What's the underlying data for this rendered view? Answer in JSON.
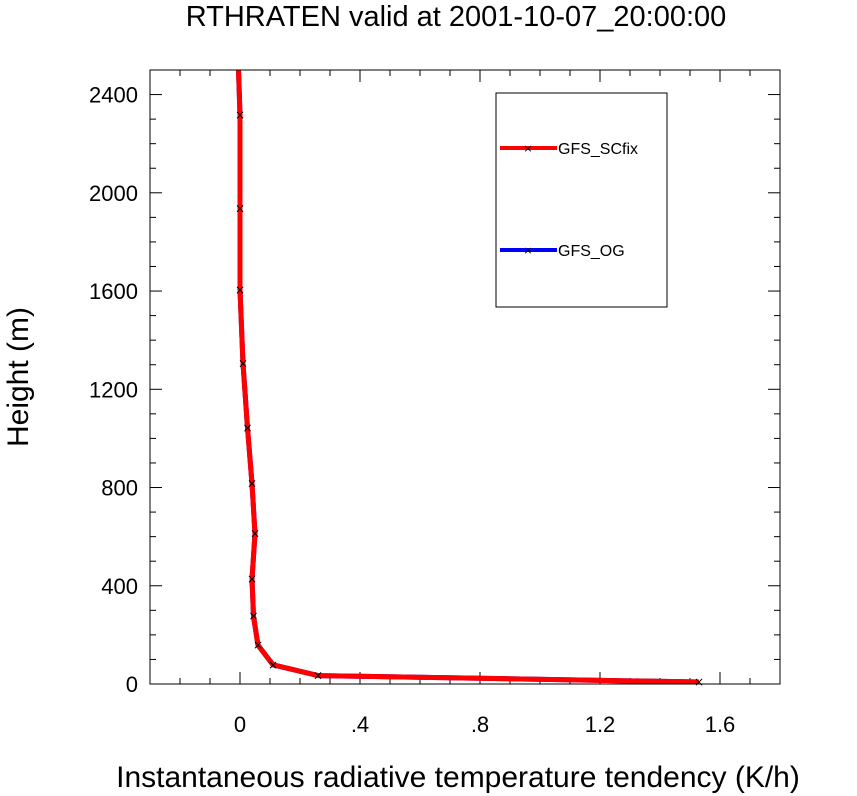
{
  "chart_data": {
    "type": "line",
    "title": "RTHRATEN valid at 2001-10-07_20:00:00",
    "xlabel": "Instantaneous radiative temperature tendency (K/h)",
    "ylabel": "Height (m)",
    "xlim": [
      -0.3,
      1.8
    ],
    "ylim": [
      0,
      2500
    ],
    "x_ticks": [
      {
        "value": 0,
        "label": "0"
      },
      {
        "value": 0.4,
        "label": ".4"
      },
      {
        "value": 0.8,
        "label": ".8"
      },
      {
        "value": 1.2,
        "label": "1.2"
      },
      {
        "value": 1.6,
        "label": "1.6"
      }
    ],
    "y_ticks": [
      {
        "value": 0,
        "label": "0"
      },
      {
        "value": 400,
        "label": "400"
      },
      {
        "value": 800,
        "label": "800"
      },
      {
        "value": 1200,
        "label": "1200"
      },
      {
        "value": 1600,
        "label": "1600"
      },
      {
        "value": 2000,
        "label": "2000"
      },
      {
        "value": 2400,
        "label": "2400"
      }
    ],
    "legend_position": "top-right",
    "series": [
      {
        "name": "GFS_OG",
        "color": "#0000ff",
        "points": [
          [
            1.53,
            8
          ],
          [
            0.26,
            34
          ],
          [
            0.11,
            78
          ],
          [
            0.06,
            158
          ],
          [
            0.045,
            276
          ],
          [
            0.04,
            428
          ],
          [
            0.05,
            612
          ],
          [
            0.04,
            816
          ],
          [
            0.025,
            1043
          ],
          [
            0.01,
            1305
          ],
          [
            0.0,
            1604
          ],
          [
            0.0,
            1936
          ],
          [
            0.0,
            2317
          ],
          [
            -0.005,
            2500
          ]
        ]
      },
      {
        "name": "GFS_SCfix",
        "color": "#ff0000",
        "points": [
          [
            1.53,
            8
          ],
          [
            0.26,
            34
          ],
          [
            0.11,
            78
          ],
          [
            0.06,
            158
          ],
          [
            0.045,
            276
          ],
          [
            0.04,
            428
          ],
          [
            0.05,
            612
          ],
          [
            0.04,
            816
          ],
          [
            0.025,
            1043
          ],
          [
            0.01,
            1305
          ],
          [
            0.0,
            1604
          ],
          [
            0.0,
            1936
          ],
          [
            0.0,
            2317
          ],
          [
            -0.005,
            2500
          ]
        ]
      }
    ],
    "marker_heights": [
      8,
      34,
      78,
      158,
      276,
      428,
      612,
      816,
      1043,
      1305,
      1604,
      1936,
      2317
    ]
  }
}
